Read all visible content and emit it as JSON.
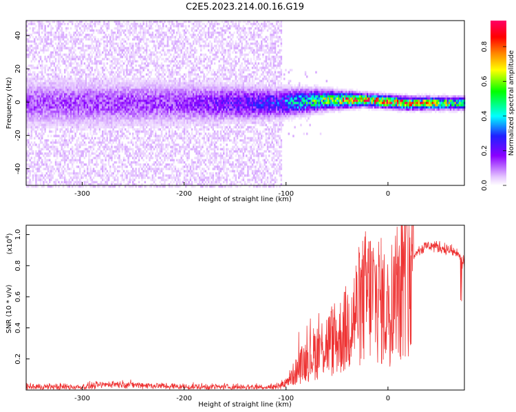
{
  "figure": {
    "title": "C2E5.2023.214.00.16.G19"
  },
  "chart_data": [
    {
      "type": "heatmap",
      "xlabel": "Height of straight line (km)",
      "ylabel": "Frequency (Hz)",
      "xlim": [
        -355,
        75
      ],
      "ylim": [
        -50,
        49
      ],
      "xticks": [
        -300,
        -200,
        -100,
        0
      ],
      "yticks": [
        -40,
        -20,
        0,
        20,
        40
      ],
      "grid": false,
      "colorbar": {
        "label": "Normalized spectral amplitude",
        "range": [
          0.0,
          0.95
        ],
        "ticks": [
          0.0,
          0.2,
          0.4,
          0.6,
          0.8
        ],
        "colormap": [
          "#ffffff",
          "#e6c8ff",
          "#8a00ff",
          "#2020ff",
          "#00ffff",
          "#00ff00",
          "#ffff00",
          "#ff8800",
          "#ff0000",
          "#ff0066"
        ]
      },
      "description_points": [
        {
          "height_km": -350,
          "center_hz": 0,
          "spread_hz": 8,
          "amplitude": 0.12
        },
        {
          "height_km": -200,
          "center_hz": 0,
          "spread_hz": 7,
          "amplitude": 0.14
        },
        {
          "height_km": -110,
          "center_hz": 0,
          "spread_hz": 5,
          "amplitude": 0.25
        },
        {
          "height_km": -60,
          "center_hz": 2,
          "spread_hz": 3,
          "amplitude": 0.55
        },
        {
          "height_km": -25,
          "center_hz": 2,
          "spread_hz": 2,
          "amplitude": 0.8
        },
        {
          "height_km": 20,
          "center_hz": 0,
          "spread_hz": 2,
          "amplitude": 0.75
        },
        {
          "height_km": 70,
          "center_hz": 0,
          "spread_hz": 2,
          "amplitude": 0.5
        }
      ]
    },
    {
      "type": "line",
      "xlabel": "Height of straight line (km)",
      "ylabel": "SNR (10 * v/v)",
      "yscale_label": "(x10",
      "yscale_exponent": "4",
      "yscale_suffix": ")",
      "xlim": [
        -355,
        75
      ],
      "ylim": [
        0,
        1.06
      ],
      "xticks": [
        -300,
        -200,
        -100,
        0
      ],
      "yticks": [
        0.2,
        0.4,
        0.6,
        0.8,
        1.0
      ],
      "grid": false,
      "color": "#ee3333",
      "series": [
        {
          "x": [
            -355,
            -300,
            -270,
            -200,
            -150,
            -110,
            -100,
            -90,
            -80,
            -70,
            -60,
            -50,
            -40,
            -30,
            -20,
            -10,
            0,
            10,
            20,
            30,
            40,
            50,
            60,
            70,
            75
          ],
          "y": [
            0.02,
            0.02,
            0.04,
            0.02,
            0.02,
            0.02,
            0.05,
            0.12,
            0.2,
            0.25,
            0.3,
            0.32,
            0.4,
            0.52,
            0.62,
            0.6,
            0.5,
            0.72,
            0.85,
            0.9,
            0.93,
            0.92,
            0.9,
            0.87,
            0.8
          ]
        }
      ]
    }
  ]
}
